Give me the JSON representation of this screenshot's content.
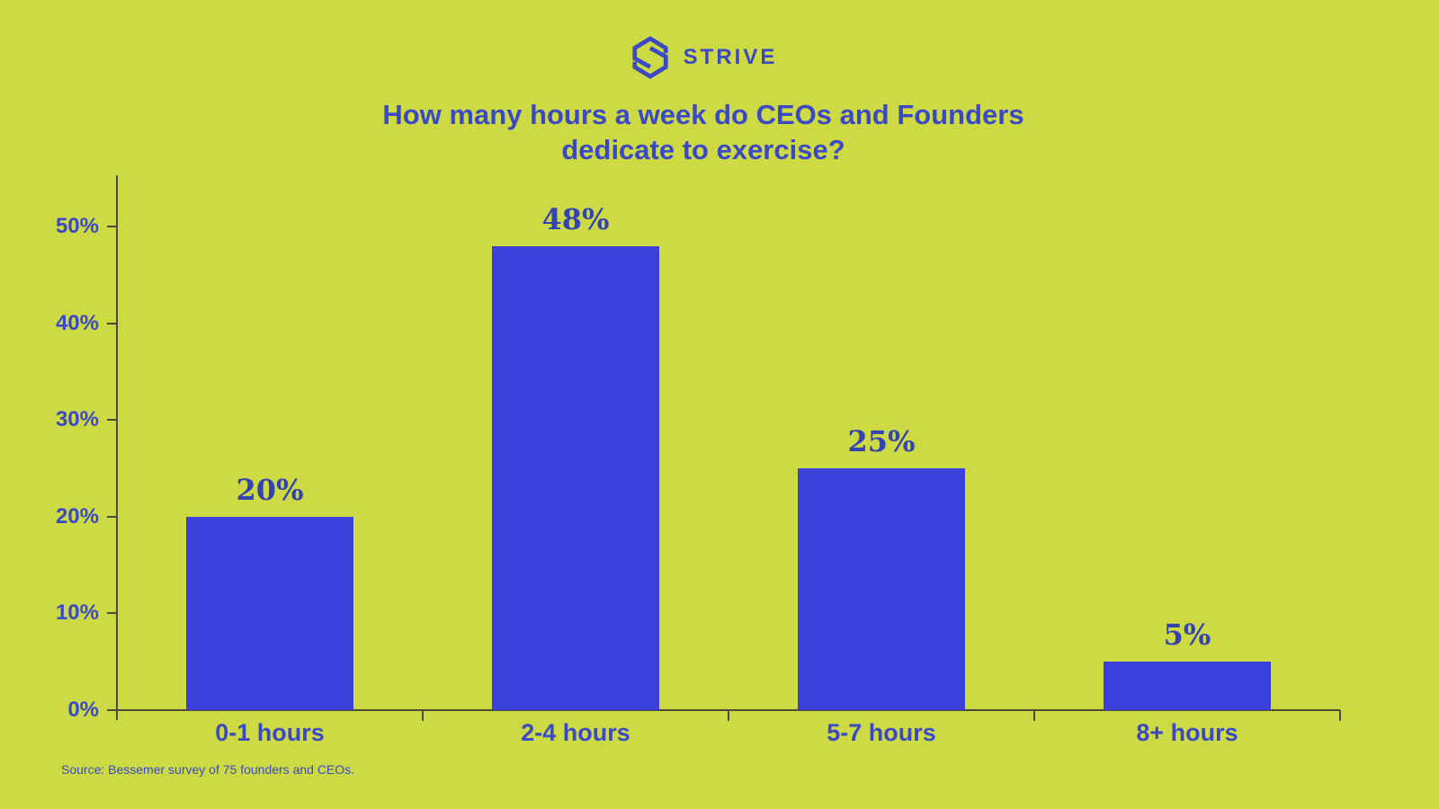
{
  "brand": {
    "name": "STRIVE"
  },
  "title": {
    "line1": "How many hours a week do CEOs and Founders",
    "line2": "dedicate to exercise?"
  },
  "source": "Source: Bessemer survey of 75 founders and CEOs.",
  "icons": {
    "logo": "strive-hexagon-s-logo"
  },
  "chart_data": {
    "type": "bar",
    "title": "How many hours a week do CEOs and Founders dedicate to exercise?",
    "categories": [
      "0-1 hours",
      "2-4 hours",
      "5-7 hours",
      "8+ hours"
    ],
    "values": [
      20,
      48,
      25,
      5
    ],
    "value_labels": [
      "20%",
      "48%",
      "25%",
      "5%"
    ],
    "xlabel": "",
    "ylabel": "",
    "y_ticks": [
      "0%",
      "10%",
      "20%",
      "30%",
      "40%",
      "50%"
    ],
    "y_tick_values": [
      0,
      10,
      20,
      30,
      40,
      50
    ],
    "ylim": [
      0,
      55
    ],
    "grid": false,
    "legend": "none",
    "colors": {
      "background": "#cdda44",
      "bar": "#3a40d9",
      "text": "#3b4ac4",
      "value_label_text": "#3343af",
      "axis_line": "#4a4c38"
    }
  }
}
